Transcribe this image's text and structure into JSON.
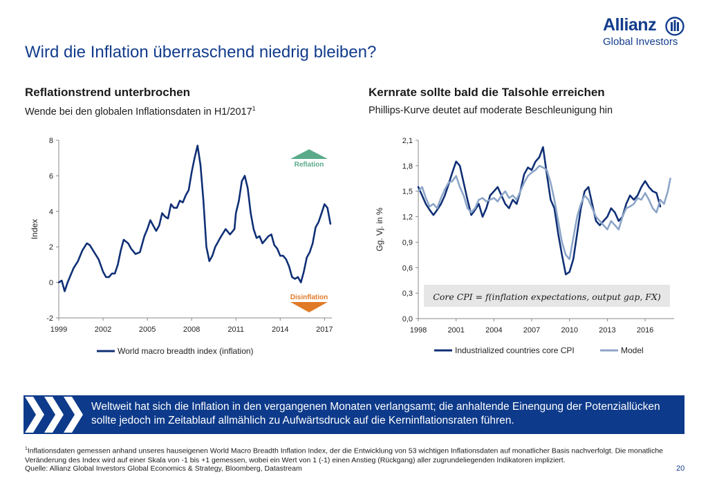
{
  "title": "Wird die Inflation überraschend niedrig bleiben?",
  "logo": {
    "name": "Allianz",
    "sub": "Global Investors"
  },
  "left_panel": {
    "heading": "Reflationstrend unterbrochen",
    "subheading": "Wende bei den globalen Inflationsdaten in H1/2017",
    "subheading_sup": "1",
    "reflation_label": "Reflation",
    "disinflation_label": "Disinflation"
  },
  "right_panel": {
    "heading": "Kernrate sollte bald die Talsohle erreichen",
    "subheading": "Phillips-Kurve deutet auf moderate Beschleunigung hin",
    "formula": "Core CPI = f(inflation expectations, output gap, FX)"
  },
  "banner": {
    "text": "Weltweit hat sich die Inflation in den vergangenen Monaten verlangsamt; die anhaltende Einengung der Potenziallücken sollte jedoch im Zeitablauf allmählich zu Aufwärtsdruck auf die Kerninflationsraten führen."
  },
  "footnote": {
    "sup": "1",
    "text": "Inflationsdaten gemessen anhand unseres hauseigenen World Macro Breadth Inflation Index, der die Entwicklung von 53 wichtigen Inflationsdaten auf monatlicher Basis nachverfolgt. Die monatliche Veränderung des Index wird auf einer Skala von -1 bis +1 gemessen, wobei ein Wert von 1 (-1) einen Anstieg (Rückgang) aller zugrundeliegenden Indikatoren impliziert."
  },
  "source": "Quelle: Allianz Global Investors Global Economics & Strategy, Bloomberg, Datastream",
  "page_number": "20",
  "colors": {
    "navy": "#123c8c",
    "series_dark": "#0f2f75",
    "series_light": "#8ca5c8",
    "reflation": "#5aaa8a",
    "disinflation": "#e07a28"
  },
  "chart_data": [
    {
      "type": "line",
      "ylabel": "Index",
      "xlim": [
        1999,
        2017.5
      ],
      "ylim": [
        -2,
        8
      ],
      "yticks": [
        -2,
        0,
        2,
        4,
        6,
        8
      ],
      "ytick_labels": [
        "-2",
        "0",
        "2",
        "4",
        "6",
        "8"
      ],
      "xticks": [
        1999,
        2002,
        2005,
        2008,
        2011,
        2014,
        2017
      ],
      "xtick_labels": [
        "1999",
        "2002",
        "2005",
        "2008",
        "2011",
        "2014",
        "2017"
      ],
      "grid": false,
      "legend": "bottom",
      "series": [
        {
          "name": "World macro breadth index (inflation)",
          "x": [
            1999.0,
            1999.2,
            1999.4,
            1999.6,
            1999.8,
            2000.0,
            2000.3,
            2000.6,
            2000.9,
            2001.1,
            2001.4,
            2001.7,
            2002.0,
            2002.2,
            2002.4,
            2002.6,
            2002.8,
            2003.0,
            2003.2,
            2003.4,
            2003.7,
            2003.9,
            2004.2,
            2004.5,
            2004.8,
            2005.0,
            2005.2,
            2005.4,
            2005.6,
            2005.8,
            2006.0,
            2006.2,
            2006.4,
            2006.6,
            2006.8,
            2007.0,
            2007.2,
            2007.4,
            2007.6,
            2007.8,
            2008.0,
            2008.2,
            2008.4,
            2008.6,
            2008.8,
            2009.0,
            2009.2,
            2009.4,
            2009.6,
            2009.8,
            2010.0,
            2010.3,
            2010.6,
            2010.9,
            2011.0,
            2011.2,
            2011.4,
            2011.6,
            2011.8,
            2012.0,
            2012.2,
            2012.4,
            2012.6,
            2012.8,
            2013.0,
            2013.2,
            2013.4,
            2013.6,
            2013.8,
            2014.0,
            2014.2,
            2014.4,
            2014.6,
            2014.8,
            2015.0,
            2015.2,
            2015.4,
            2015.6,
            2015.8,
            2016.0,
            2016.2,
            2016.4,
            2016.6,
            2016.8,
            2017.0,
            2017.2,
            2017.4
          ],
          "values": [
            0.0,
            0.1,
            -0.5,
            0.0,
            0.4,
            0.8,
            1.2,
            1.8,
            2.2,
            2.1,
            1.7,
            1.3,
            0.6,
            0.3,
            0.3,
            0.5,
            0.5,
            1.0,
            1.8,
            2.4,
            2.2,
            1.9,
            1.6,
            1.7,
            2.6,
            3.0,
            3.5,
            3.2,
            2.9,
            3.2,
            3.9,
            3.7,
            3.6,
            4.4,
            4.2,
            4.2,
            4.6,
            4.5,
            4.9,
            5.2,
            6.2,
            7.0,
            7.7,
            6.6,
            4.6,
            2.0,
            1.2,
            1.5,
            2.0,
            2.3,
            2.6,
            3.0,
            2.7,
            3.0,
            3.9,
            4.6,
            5.7,
            6.0,
            5.3,
            3.9,
            3.0,
            2.5,
            2.6,
            2.2,
            2.4,
            2.6,
            2.7,
            2.1,
            1.9,
            1.5,
            1.5,
            1.3,
            0.9,
            0.3,
            0.2,
            0.3,
            0.0,
            0.6,
            1.4,
            1.7,
            2.2,
            3.1,
            3.4,
            3.9,
            4.4,
            4.2,
            3.3
          ]
        }
      ]
    },
    {
      "type": "line",
      "ylabel": "Gg. Vj. in %",
      "xlim": [
        1998,
        2018.3
      ],
      "ylim": [
        0,
        2.1
      ],
      "yticks": [
        0,
        0.3,
        0.6,
        0.9,
        1.2,
        1.5,
        1.8,
        2.1
      ],
      "ytick_labels": [
        "0,0",
        "0,3",
        "0,6",
        "0,9",
        "1,2",
        "1,5",
        "1,8",
        "2,1"
      ],
      "xticks": [
        1998,
        2001,
        2004,
        2007,
        2010,
        2013,
        2016
      ],
      "xtick_labels": [
        "1998",
        "2001",
        "2004",
        "2007",
        "2010",
        "2013",
        "2016"
      ],
      "grid": false,
      "legend": "bottom",
      "series": [
        {
          "name": "Industrialized countries core CPI",
          "x": [
            1998.0,
            1998.3,
            1998.6,
            1998.9,
            1999.2,
            1999.5,
            1999.8,
            2000.1,
            2000.4,
            2000.7,
            2001.0,
            2001.3,
            2001.6,
            2001.9,
            2002.2,
            2002.5,
            2002.8,
            2003.1,
            2003.4,
            2003.7,
            2004.0,
            2004.3,
            2004.6,
            2004.9,
            2005.2,
            2005.5,
            2005.8,
            2006.1,
            2006.4,
            2006.7,
            2007.0,
            2007.3,
            2007.6,
            2007.9,
            2008.2,
            2008.5,
            2008.8,
            2009.1,
            2009.4,
            2009.7,
            2010.0,
            2010.3,
            2010.6,
            2010.9,
            2011.2,
            2011.5,
            2011.8,
            2012.1,
            2012.4,
            2012.7,
            2013.0,
            2013.3,
            2013.6,
            2013.9,
            2014.2,
            2014.5,
            2014.8,
            2015.1,
            2015.4,
            2015.7,
            2016.0,
            2016.3,
            2016.6,
            2016.9,
            2017.2
          ],
          "values": [
            1.55,
            1.45,
            1.35,
            1.28,
            1.22,
            1.28,
            1.35,
            1.45,
            1.58,
            1.72,
            1.85,
            1.8,
            1.6,
            1.4,
            1.22,
            1.28,
            1.35,
            1.2,
            1.3,
            1.45,
            1.5,
            1.55,
            1.45,
            1.35,
            1.3,
            1.4,
            1.35,
            1.5,
            1.7,
            1.78,
            1.75,
            1.85,
            1.9,
            2.02,
            1.7,
            1.4,
            1.3,
            1.0,
            0.75,
            0.52,
            0.55,
            0.7,
            1.0,
            1.3,
            1.5,
            1.55,
            1.35,
            1.15,
            1.1,
            1.15,
            1.2,
            1.3,
            1.25,
            1.15,
            1.2,
            1.35,
            1.45,
            1.4,
            1.45,
            1.55,
            1.62,
            1.55,
            1.5,
            1.48,
            1.32
          ]
        },
        {
          "name": "Model",
          "x": [
            1998.0,
            1998.3,
            1998.6,
            1998.9,
            1999.2,
            1999.5,
            1999.8,
            2000.1,
            2000.4,
            2000.7,
            2001.0,
            2001.3,
            2001.6,
            2001.9,
            2002.2,
            2002.5,
            2002.8,
            2003.1,
            2003.4,
            2003.7,
            2004.0,
            2004.3,
            2004.6,
            2004.9,
            2005.2,
            2005.5,
            2005.8,
            2006.1,
            2006.4,
            2006.7,
            2007.0,
            2007.3,
            2007.6,
            2007.9,
            2008.2,
            2008.5,
            2008.8,
            2009.1,
            2009.4,
            2009.7,
            2010.0,
            2010.3,
            2010.6,
            2010.9,
            2011.2,
            2011.5,
            2011.8,
            2012.1,
            2012.4,
            2012.7,
            2013.0,
            2013.3,
            2013.6,
            2013.9,
            2014.2,
            2014.5,
            2014.8,
            2015.1,
            2015.4,
            2015.7,
            2016.0,
            2016.3,
            2016.6,
            2016.9,
            2017.2,
            2017.5,
            2017.8,
            2018.0
          ],
          "values": [
            1.5,
            1.55,
            1.42,
            1.32,
            1.35,
            1.3,
            1.42,
            1.52,
            1.6,
            1.62,
            1.68,
            1.55,
            1.45,
            1.3,
            1.25,
            1.3,
            1.4,
            1.42,
            1.38,
            1.4,
            1.42,
            1.38,
            1.45,
            1.5,
            1.42,
            1.45,
            1.4,
            1.5,
            1.6,
            1.68,
            1.72,
            1.75,
            1.8,
            1.78,
            1.75,
            1.6,
            1.4,
            1.15,
            0.9,
            0.75,
            0.7,
            0.95,
            1.2,
            1.35,
            1.45,
            1.4,
            1.3,
            1.2,
            1.15,
            1.1,
            1.05,
            1.15,
            1.1,
            1.05,
            1.2,
            1.3,
            1.32,
            1.35,
            1.42,
            1.4,
            1.48,
            1.4,
            1.3,
            1.25,
            1.4,
            1.35,
            1.5,
            1.65
          ]
        }
      ]
    }
  ]
}
